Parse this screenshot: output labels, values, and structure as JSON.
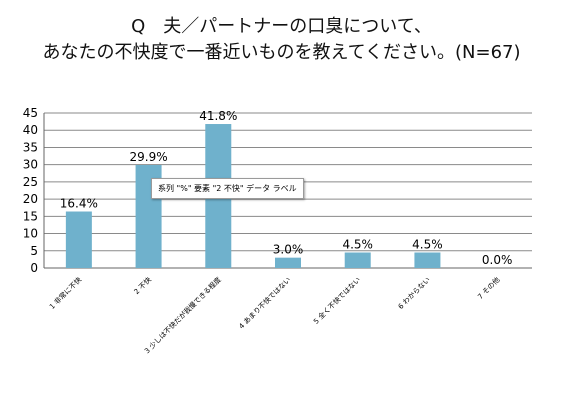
{
  "title_line1": "Q　夫／パートナーの口臭について、",
  "title_line2": "あなたの不快度で一番近いものを教えてください。(N=67)",
  "tooltip": "系列 \"%\" 要素 \"2 不快\" データ ラベル",
  "colors": {
    "bar": "#6fb1cc",
    "grid": "#8a8a8a",
    "axis": "#666666"
  },
  "chart_data": {
    "type": "bar",
    "categories": [
      "1 非常に不快",
      "2 不快",
      "3 少しは不快だが我慢できる程度",
      "4 あまり不快ではない",
      "5 全く不快ではない",
      "6 わからない",
      "7 その他"
    ],
    "series": [
      {
        "values": [
          16.4,
          29.9,
          41.8,
          3.0,
          4.5,
          4.5,
          0.0
        ]
      }
    ],
    "data_labels": [
      "16.4%",
      "29.9%",
      "41.8%",
      "3.0%",
      "4.5%",
      "4.5%",
      "0.0%"
    ],
    "yticks": [
      "0",
      "5",
      "10",
      "15",
      "20",
      "25",
      "30",
      "35",
      "40",
      "45"
    ],
    "ylim": [
      0,
      45
    ],
    "grid": true
  }
}
